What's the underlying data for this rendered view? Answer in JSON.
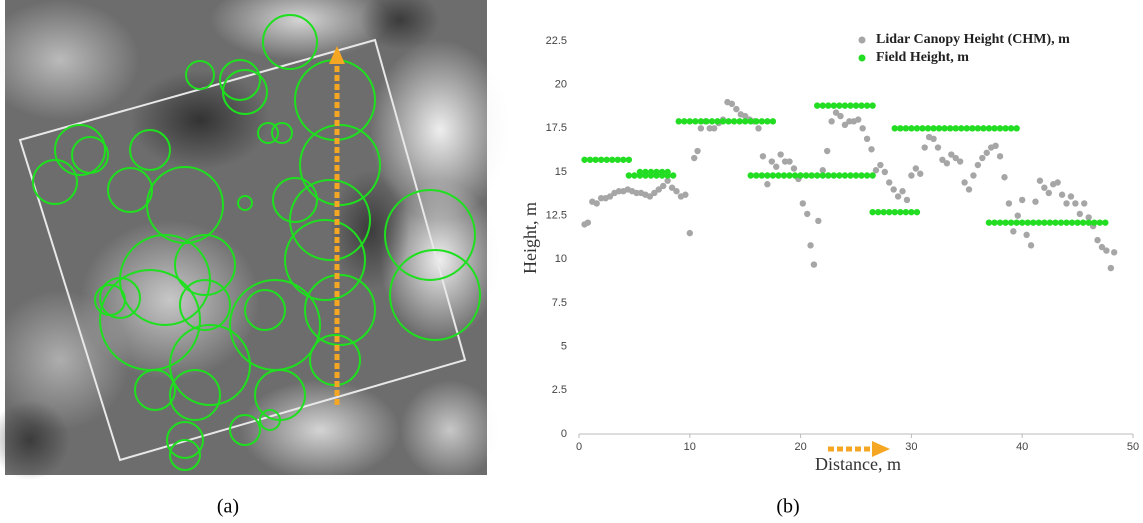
{
  "panel_labels": [
    "(a)",
    "(b)"
  ],
  "chart_data": {
    "type": "scatter",
    "x_label": "Distance, m",
    "y_label": "Height, m",
    "xlim": [
      0,
      50
    ],
    "xticks": [
      0,
      10,
      20,
      30,
      40,
      50
    ],
    "ylim": [
      0,
      22.5
    ],
    "yticks": [
      0,
      2.5,
      5,
      7.5,
      10,
      12.5,
      15,
      17.5,
      20,
      22.5
    ],
    "grid": false,
    "legend": "top-right",
    "series": [
      {
        "name": "Lidar Canopy Height (CHM), m",
        "color": "#a6a6a6",
        "x": [
          0.5,
          0.8,
          1.2,
          1.6,
          2.0,
          2.4,
          2.8,
          3.2,
          3.6,
          4.0,
          4.4,
          4.8,
          5.2,
          5.6,
          6.0,
          6.4,
          6.8,
          7.2,
          7.6,
          8.0,
          8.4,
          8.8,
          9.2,
          9.6,
          10.0,
          10.4,
          10.7,
          11.0,
          11.4,
          11.8,
          12.2,
          12.6,
          13.0,
          13.4,
          13.8,
          14.2,
          14.6,
          15.0,
          15.4,
          15.8,
          16.2,
          16.6,
          17.0,
          17.4,
          17.8,
          18.2,
          18.6,
          19.0,
          19.4,
          19.8,
          20.2,
          20.6,
          20.9,
          21.2,
          21.6,
          22.0,
          22.4,
          22.8,
          23.2,
          23.6,
          24.0,
          24.4,
          24.8,
          25.2,
          25.6,
          26.0,
          26.4,
          26.8,
          27.2,
          27.6,
          28.0,
          28.4,
          28.8,
          29.2,
          29.6,
          30.0,
          30.4,
          30.8,
          31.2,
          31.6,
          32.0,
          32.4,
          32.8,
          33.2,
          33.6,
          34.0,
          34.4,
          34.8,
          35.2,
          35.6,
          36.0,
          36.4,
          36.8,
          37.2,
          37.6,
          38.0,
          38.4,
          38.8,
          39.2,
          39.6,
          40.0,
          40.4,
          40.8,
          41.2,
          41.6,
          42.0,
          42.4,
          42.8,
          43.2,
          43.6,
          44.0,
          44.4,
          44.8,
          45.2,
          45.6,
          46.0,
          46.4,
          46.8,
          47.2,
          47.6,
          48.0,
          48.3
        ],
        "values": [
          12.0,
          12.1,
          13.3,
          13.2,
          13.5,
          13.5,
          13.6,
          13.8,
          13.9,
          13.9,
          14.0,
          13.9,
          13.8,
          13.8,
          13.7,
          13.6,
          13.8,
          14.0,
          14.2,
          14.5,
          14.1,
          13.9,
          13.6,
          13.7,
          11.5,
          15.8,
          16.2,
          17.5,
          17.9,
          17.5,
          17.5,
          17.8,
          18.0,
          19.0,
          18.9,
          18.6,
          18.3,
          18.2,
          18.0,
          17.9,
          17.5,
          15.9,
          14.3,
          15.6,
          15.3,
          16.0,
          15.6,
          15.6,
          15.2,
          14.6,
          13.2,
          12.6,
          10.8,
          9.7,
          12.2,
          15.1,
          16.2,
          17.9,
          18.4,
          18.2,
          17.7,
          17.9,
          17.9,
          18.0,
          17.5,
          16.9,
          16.3,
          15.1,
          15.4,
          15.0,
          14.4,
          14.0,
          13.6,
          13.9,
          13.4,
          14.8,
          15.2,
          14.9,
          16.4,
          17.0,
          16.9,
          16.4,
          15.7,
          15.5,
          16.0,
          15.8,
          15.6,
          14.4,
          14.0,
          14.8,
          15.4,
          15.8,
          16.1,
          16.4,
          16.5,
          15.9,
          14.7,
          13.2,
          11.6,
          12.5,
          13.4,
          11.4,
          10.8,
          13.3,
          14.5,
          14.1,
          13.8,
          14.3,
          14.4,
          13.7,
          13.2,
          13.6,
          13.2,
          12.6,
          13.2,
          12.4,
          11.9,
          11.1,
          10.7,
          10.5,
          9.5,
          10.4
        ]
      },
      {
        "name": "Field Height, m",
        "color": "#22dd22",
        "x": [
          0.5,
          1,
          1.5,
          2,
          2.5,
          3,
          3.5,
          4,
          4.5,
          4.5,
          5,
          5.5,
          6,
          6.5,
          7,
          7.5,
          8,
          8.5,
          5.5,
          6,
          6.5,
          7,
          7.5,
          8,
          9,
          9.5,
          10,
          10.5,
          11,
          11.5,
          12,
          12.5,
          13,
          13.5,
          14,
          14.5,
          15,
          15.5,
          16,
          16.5,
          17,
          17.5,
          15.5,
          16,
          16.5,
          17,
          17.5,
          18,
          18.5,
          19,
          19.5,
          20,
          20.5,
          21,
          21.5,
          22,
          22.5,
          23,
          23.5,
          24,
          24.5,
          25,
          25.5,
          26,
          26.5,
          21.5,
          22,
          22.5,
          23,
          23.5,
          24,
          24.5,
          25,
          25.5,
          26,
          26.5,
          26.5,
          27,
          27.5,
          28,
          28.5,
          29,
          29.5,
          30,
          30.5,
          28.5,
          29,
          29.5,
          30,
          30.5,
          31,
          31.5,
          32,
          32.5,
          33,
          33.5,
          34,
          34.5,
          35,
          35.5,
          36,
          36.5,
          37,
          37.5,
          38,
          38.5,
          39,
          39.5,
          37,
          37.5,
          38,
          38.5,
          39,
          39.5,
          40,
          40.5,
          41,
          41.5,
          42,
          42.5,
          43,
          43.5,
          44,
          44.5,
          45,
          45.5,
          46,
          46.5,
          47,
          47.5
        ],
        "values": [
          15.7,
          15.7,
          15.7,
          15.7,
          15.7,
          15.7,
          15.7,
          15.7,
          15.7,
          14.8,
          14.8,
          14.8,
          14.8,
          14.8,
          14.8,
          14.8,
          14.8,
          14.8,
          15.0,
          15.0,
          15.0,
          15.0,
          15.0,
          15.0,
          17.9,
          17.9,
          17.9,
          17.9,
          17.9,
          17.9,
          17.9,
          17.9,
          17.9,
          17.9,
          17.9,
          17.9,
          17.9,
          17.9,
          17.9,
          17.9,
          17.9,
          17.9,
          14.8,
          14.8,
          14.8,
          14.8,
          14.8,
          14.8,
          14.8,
          14.8,
          14.8,
          14.8,
          14.8,
          14.8,
          14.8,
          14.8,
          14.8,
          14.8,
          14.8,
          14.8,
          14.8,
          14.8,
          14.8,
          14.8,
          14.8,
          18.8,
          18.8,
          18.8,
          18.8,
          18.8,
          18.8,
          18.8,
          18.8,
          18.8,
          18.8,
          18.8,
          12.7,
          12.7,
          12.7,
          12.7,
          12.7,
          12.7,
          12.7,
          12.7,
          12.7,
          17.5,
          17.5,
          17.5,
          17.5,
          17.5,
          17.5,
          17.5,
          17.5,
          17.5,
          17.5,
          17.5,
          17.5,
          17.5,
          17.5,
          17.5,
          17.5,
          17.5,
          17.5,
          17.5,
          17.5,
          17.5,
          17.5,
          17.5,
          12.1,
          12.1,
          12.1,
          12.1,
          12.1,
          12.1,
          12.1,
          12.1,
          12.1,
          12.1,
          12.1,
          12.1,
          12.1,
          12.1,
          12.1,
          12.1,
          12.1,
          12.1,
          12.1,
          12.1,
          12.1,
          12.1
        ]
      }
    ]
  }
}
